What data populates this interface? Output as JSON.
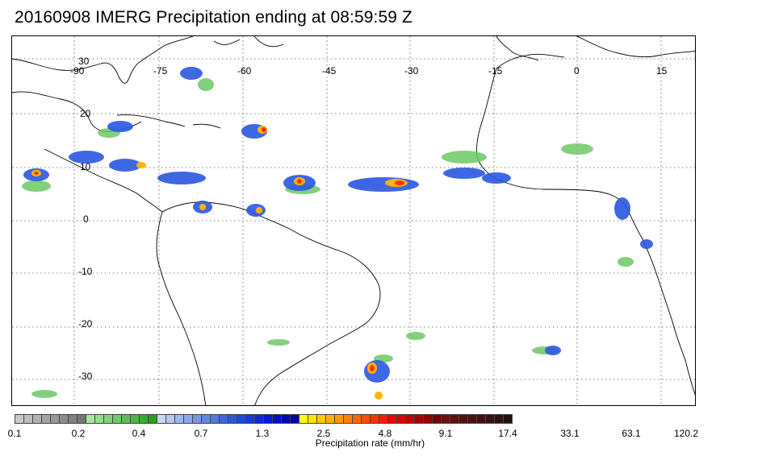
{
  "title": "20160908 IMERG Precipitation ending at 08:59:59 Z",
  "map": {
    "lon_labels": [
      "-90",
      "-75",
      "-60",
      "-45",
      "-30",
      "-15",
      "0",
      "15"
    ],
    "lat_labels": [
      "30",
      "20",
      "10",
      "0",
      "-10",
      "-20",
      "-30"
    ],
    "gridline_style": "dotted",
    "coastline_color": "#000000"
  },
  "colorbar": {
    "title": "Precipitation rate (mm/hr)",
    "tick_labels": [
      "0.1",
      "0.2",
      "0.4",
      "0.7",
      "1.3",
      "2.5",
      "4.8",
      "9.1",
      "17.4",
      "33.1",
      "63.1",
      "120.2"
    ],
    "colors": [
      "#c8c8c8",
      "#bcbcbc",
      "#b0b0b0",
      "#a4a4a4",
      "#989898",
      "#8c8c8c",
      "#808080",
      "#747474",
      "#a6e6a0",
      "#94dc8e",
      "#82d27c",
      "#70c86a",
      "#5ebe58",
      "#4cb446",
      "#3aaa34",
      "#289f22",
      "#c8d8f4",
      "#b4c8f0",
      "#a0b8ec",
      "#8ca8e8",
      "#7898e4",
      "#6488e0",
      "#5078dc",
      "#3c68d8",
      "#2a58e0",
      "#1e48e0",
      "#1438e0",
      "#0a28e0",
      "#0018dc",
      "#0010c8",
      "#0008b4",
      "#0000a0",
      "#ffff00",
      "#ffe600",
      "#ffcc00",
      "#ffb300",
      "#ff9900",
      "#ff8000",
      "#ff6600",
      "#ff4d00",
      "#ff3300",
      "#ff1a00",
      "#f00000",
      "#d80000",
      "#c00000",
      "#a80000",
      "#900000",
      "#780000",
      "#6a1010",
      "#601010",
      "#561010",
      "#4c1010",
      "#421010",
      "#381010",
      "#2e1010",
      "#241010"
    ]
  }
}
